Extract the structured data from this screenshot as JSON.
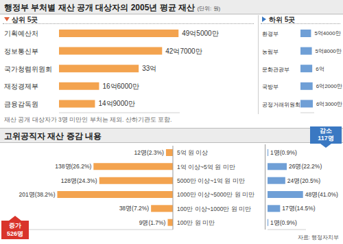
{
  "chart_data": [
    {
      "type": "bar",
      "orientation": "horizontal",
      "title": "행정부 부처별 재산 공개 대상자의 2005년 평균 재산",
      "unit": "(단위: 원)",
      "subtitle": "상위 5곳",
      "categories": [
        "기획예산처",
        "정보통신부",
        "국가청렴위원회",
        "재정경제부",
        "금융감독원"
      ],
      "values": [
        4950000000,
        4270000000,
        3300000000,
        1660000000,
        1490000000
      ],
      "value_labels": [
        "49억5000만",
        "42억7000만",
        "33억",
        "16억6000만",
        "14억9000만"
      ],
      "color": "#f3a34f",
      "xlim": [
        0,
        5000000000
      ],
      "tick_labels": false,
      "data_labels": true,
      "annotations": [
        "재산 공개 대상자가 3명 미만인 부처는 제외. 산하기관도 포함."
      ]
    },
    {
      "type": "bar",
      "orientation": "horizontal",
      "subtitle": "하위 5곳",
      "categories": [
        "환경부",
        "농림부",
        "문화관광부",
        "국방부",
        "공정거래위원회"
      ],
      "values": [
        540000000,
        580000000,
        600000000,
        620000000,
        630000000
      ],
      "value_labels": [
        "5억4000만",
        "5억8000만",
        "6억",
        "6억2000만",
        "6억3000만"
      ],
      "color": "#6f9fd6",
      "xlim": [
        0,
        700000000
      ],
      "tick_labels": false,
      "data_labels": true
    },
    {
      "type": "bar",
      "orientation": "horizontal",
      "title": "고위공직자 재산 증감 내용",
      "source": "자료: 행정자치부",
      "categories": [
        "5억 원 이상",
        "1억 이상~5억 원 미만",
        "5000만 이상~1억 원 미만",
        "1000만 이상~5000만 원 미만",
        "100만 이상~1000만 원 미만",
        "100만 원 미만"
      ],
      "series": [
        {
          "name": "증가",
          "total_label": "526명",
          "color": "#f3a34f",
          "xlim": [
            0,
            260
          ],
          "values": [
            12,
            138,
            128,
            201,
            38,
            9
          ],
          "value_labels": [
            "12명(2.3%)",
            "138명(26.2%)",
            "128명(24.3%)",
            "201명(38.2%)",
            "38명(7.2%)",
            "9명(1.7%)"
          ]
        },
        {
          "name": "감소",
          "total_label": "117명",
          "color": "#6f9fd6",
          "xlim": [
            0,
            52
          ],
          "values": [
            1,
            26,
            24,
            48,
            17,
            1
          ],
          "value_labels": [
            "1명(0.9%)",
            "26명(22.2%)",
            "24명(20.5%)",
            "48명(41.0%)",
            "17명(14.5%)",
            "1명(0.9%)"
          ]
        }
      ],
      "tick_labels": false,
      "data_labels": true
    }
  ]
}
